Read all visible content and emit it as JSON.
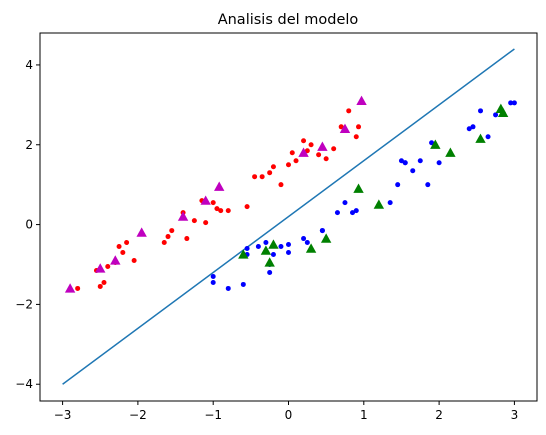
{
  "chart_data": {
    "type": "scatter",
    "title": "Analisis del modelo",
    "xlabel": "",
    "ylabel": "",
    "xlim": [
      -3.3,
      3.3
    ],
    "ylim": [
      -4.42,
      4.8
    ],
    "xticks": [
      -3,
      -2,
      -1,
      0,
      1,
      2,
      3
    ],
    "yticks": [
      -4,
      -2,
      0,
      2,
      4
    ],
    "xtick_labels": [
      "−3",
      "−2",
      "−1",
      "0",
      "1",
      "2",
      "3"
    ],
    "ytick_labels": [
      "−4",
      "−2",
      "0",
      "2",
      "4"
    ],
    "grid": false,
    "legend": false,
    "series": [
      {
        "kind": "line",
        "color": "#1f77b4",
        "x": [
          -3,
          3
        ],
        "y": [
          -4,
          4.4
        ]
      },
      {
        "kind": "points",
        "marker": "circle",
        "color": "#ff0000",
        "x": [
          -2.8,
          -2.55,
          -2.5,
          -2.45,
          -2.4,
          -2.3,
          -2.25,
          -2.2,
          -2.15,
          -2.05,
          -1.65,
          -1.6,
          -1.55,
          -1.4,
          -1.35,
          -1.25,
          -1.15,
          -1.1,
          -1.0,
          -0.95,
          -0.9,
          -0.8,
          -0.55,
          -0.45,
          -0.35,
          -0.25,
          -0.2,
          -0.1,
          0.0,
          0.05,
          0.1,
          0.2,
          0.25,
          0.3,
          0.4,
          0.5,
          0.6,
          0.7,
          0.8,
          0.9,
          0.93
        ],
        "y": [
          -1.6,
          -1.15,
          -1.55,
          -1.45,
          -1.05,
          -0.95,
          -0.55,
          -0.7,
          -0.45,
          -0.9,
          -0.45,
          -0.3,
          -0.15,
          0.3,
          -0.35,
          0.1,
          0.6,
          0.05,
          0.55,
          0.4,
          0.35,
          0.35,
          0.45,
          1.2,
          1.2,
          1.3,
          1.45,
          1.0,
          1.5,
          1.8,
          1.6,
          2.1,
          1.85,
          2.0,
          1.75,
          1.65,
          1.9,
          2.45,
          2.85,
          2.2,
          2.45
        ]
      },
      {
        "kind": "points",
        "marker": "triangle",
        "color": "#bf00bf",
        "x": [
          -2.9,
          -2.5,
          -2.3,
          -1.95,
          -1.4,
          -1.1,
          -0.92,
          0.2,
          0.45,
          0.75,
          0.97
        ],
        "y": [
          -1.6,
          -1.1,
          -0.9,
          -0.2,
          0.2,
          0.6,
          0.95,
          1.8,
          1.95,
          2.4,
          3.1
        ]
      },
      {
        "kind": "points",
        "marker": "circle",
        "color": "#0000ff",
        "x": [
          -1.0,
          -1.0,
          -0.8,
          -0.6,
          -0.55,
          -0.55,
          -0.4,
          -0.3,
          -0.25,
          -0.25,
          -0.2,
          -0.1,
          0.0,
          0.0,
          0.2,
          0.25,
          0.45,
          0.45,
          0.65,
          0.75,
          0.85,
          0.9,
          1.35,
          1.45,
          1.5,
          1.55,
          1.55,
          1.65,
          1.75,
          1.85,
          1.9,
          2.0,
          2.4,
          2.45,
          2.55,
          2.65,
          2.75,
          2.95,
          3.0
        ],
        "y": [
          -1.3,
          -1.45,
          -1.6,
          -1.5,
          -0.75,
          -0.6,
          -0.55,
          -0.45,
          -1.0,
          -1.2,
          -0.75,
          -0.55,
          -0.5,
          -0.7,
          -0.35,
          -0.45,
          -0.15,
          -0.15,
          0.3,
          0.55,
          0.3,
          0.35,
          0.55,
          1.0,
          1.6,
          1.55,
          1.55,
          1.35,
          1.6,
          1.0,
          2.05,
          1.55,
          2.4,
          2.45,
          2.85,
          2.2,
          2.75,
          3.05,
          3.05
        ]
      },
      {
        "kind": "points",
        "marker": "triangle",
        "color": "#008000",
        "x": [
          -0.6,
          -0.3,
          -0.25,
          -0.2,
          0.3,
          0.5,
          0.93,
          1.2,
          1.95,
          2.15,
          2.55,
          2.82,
          2.85
        ],
        "y": [
          -0.75,
          -0.65,
          -0.95,
          -0.5,
          -0.6,
          -0.35,
          0.9,
          0.5,
          2.0,
          1.8,
          2.15,
          2.9,
          2.8
        ]
      }
    ]
  }
}
